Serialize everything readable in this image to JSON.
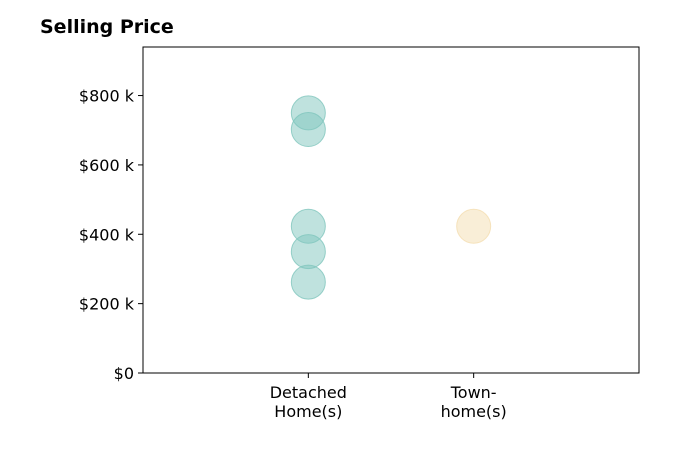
{
  "chart_data": {
    "type": "scatter",
    "title": "Selling Price",
    "xlabel": "",
    "ylabel": "",
    "categories": [
      "Detached\nHome(s)",
      "Town-\nhome(s)"
    ],
    "ylim": [
      0,
      940
    ],
    "y_ticks": [
      {
        "value": 0,
        "label": "$0"
      },
      {
        "value": 200,
        "label": "$200 k"
      },
      {
        "value": 400,
        "label": "$400 k"
      },
      {
        "value": 600,
        "label": "$600 k"
      },
      {
        "value": 800,
        "label": "$800 k"
      }
    ],
    "series": [
      {
        "category": "Detached\nHome(s)",
        "values": [
          750,
          702,
          423,
          350,
          262
        ],
        "color": "#7fc5bd"
      },
      {
        "category": "Town-\nhome(s)",
        "values": [
          423
        ],
        "color": "#f4ddb0"
      }
    ],
    "grid": false,
    "legend": "none"
  }
}
